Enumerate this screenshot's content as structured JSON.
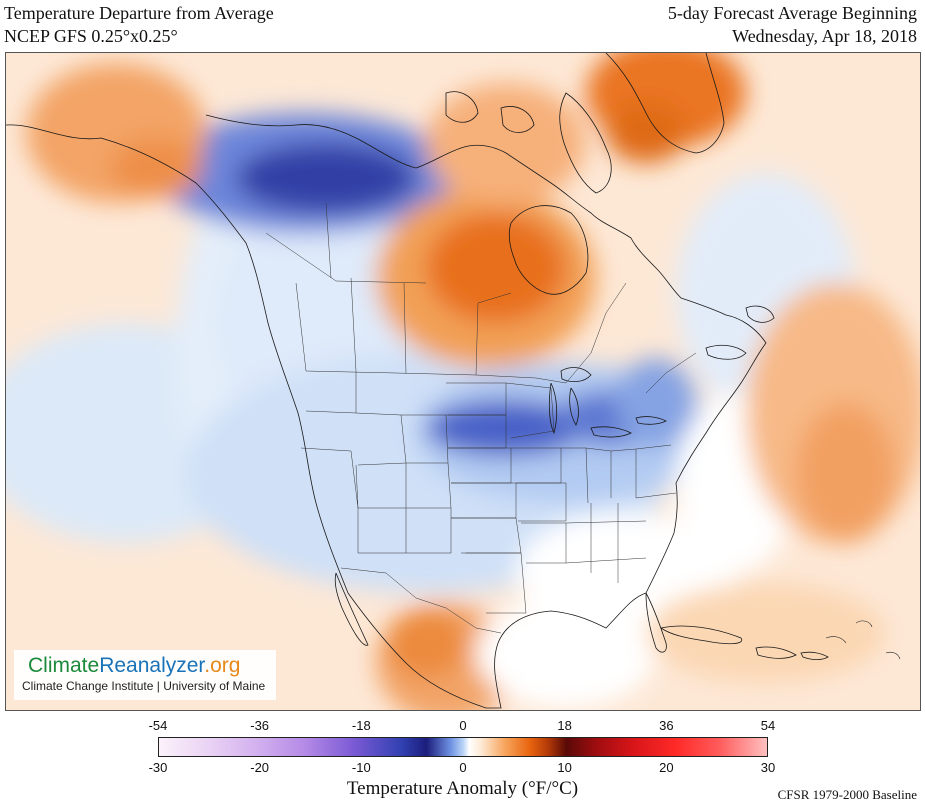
{
  "header": {
    "title_line1": "Temperature Departure from Average",
    "title_line2": "NCEP GFS 0.25°x0.25°",
    "right_line1": "5-day Forecast Average Beginning",
    "right_line2": "Wednesday, Apr 18, 2018"
  },
  "logo": {
    "part1": "Climate",
    "part2": "Reanalyzer",
    "part3": ".org",
    "subtitle": "Climate Change Institute | University of Maine"
  },
  "colorbar": {
    "fahrenheit_ticks": [
      "-54",
      "-36",
      "-18",
      "0",
      "18",
      "36",
      "54"
    ],
    "celsius_ticks": [
      "-30",
      "-20",
      "-10",
      "0",
      "10",
      "20",
      "30"
    ],
    "title": "Temperature Anomaly (°F/°C)",
    "baseline": "CFSR 1979-2000 Baseline"
  },
  "colors": {
    "cold_deep": "#1c1d7c",
    "cold_mid": "#4b6fd6",
    "cold_light": "#cfe0f8",
    "neutral": "#ffffff",
    "warm_light": "#fbd7b3",
    "warm_mid": "#f08a2e",
    "warm_deep": "#d9560a"
  }
}
